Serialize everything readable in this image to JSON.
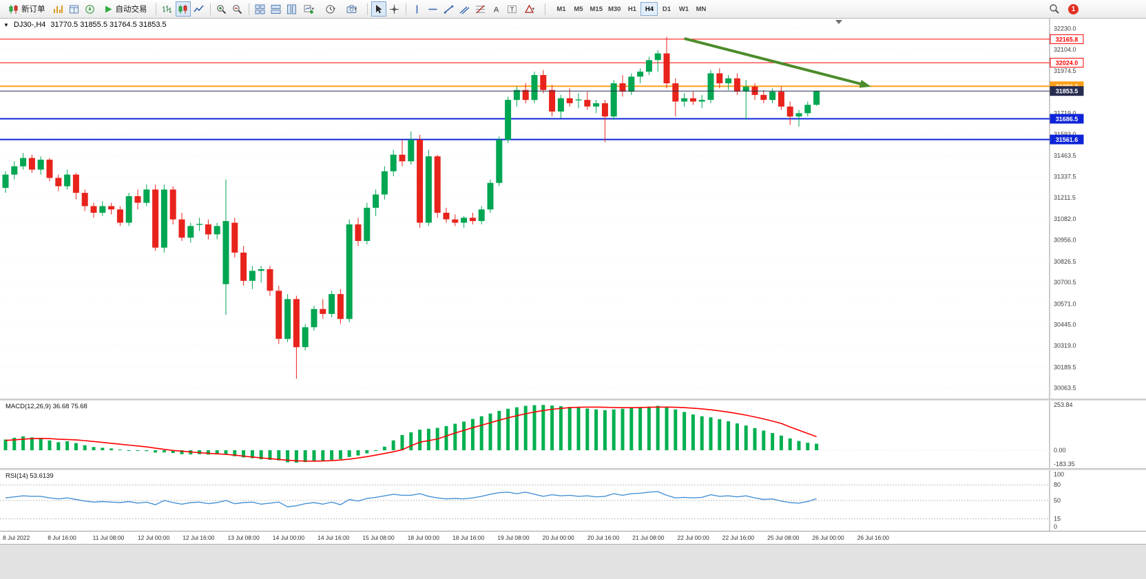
{
  "toolbar": {
    "new_order_label": "新订单",
    "auto_trading_label": "自动交易",
    "timeframes": [
      "M1",
      "M5",
      "M15",
      "M30",
      "H1",
      "H4",
      "D1",
      "W1",
      "MN"
    ],
    "active_timeframe": "H4",
    "notification_count": "1"
  },
  "chart": {
    "symbol": "DJ30-,H4",
    "ohlc": "31770.5 31855.5 31764.5 31853.5",
    "up_color": "#00a651",
    "down_color": "#e8231c",
    "price_max": 32290,
    "price_min": 30000,
    "price_axis": [
      32230.0,
      32104.0,
      31974.5,
      31719.0,
      31593.0,
      31463.5,
      31337.5,
      31211.5,
      31082.0,
      30956.0,
      30826.5,
      30700.5,
      30571.0,
      30445.0,
      30319.0,
      30189.5,
      30063.5
    ],
    "hlines": [
      {
        "value": 32165.8,
        "label": "32165.8",
        "color": "#ff0000",
        "width": 1,
        "badge": "outline"
      },
      {
        "value": 32024.0,
        "label": "32024.0",
        "color": "#ff0000",
        "width": 1,
        "badge": "outline"
      },
      {
        "value": 31882.2,
        "label": "31882.2",
        "color": "#ffa018",
        "width": 2,
        "badge": "solid"
      },
      {
        "value": 31853.5,
        "label": "31853.5",
        "color": "#272b4e",
        "width": 1,
        "badge": "solid",
        "front": true
      },
      {
        "value": 31686.5,
        "label": "31686.5",
        "color": "#0d24d8",
        "width": 2,
        "badge": "solid"
      },
      {
        "value": 31561.6,
        "label": "31561.6",
        "color": "#0d24d8",
        "width": 2,
        "badge": "solid"
      }
    ],
    "arrow": {
      "i1": 77,
      "p1": 32170,
      "i2": 97.5,
      "p2": 31890,
      "color": "#4c8c2b"
    },
    "time_labels": [
      "8 Jul 2022",
      "8 Jul 16:00",
      "11 Jul 08:00",
      "12 Jul 00:00",
      "12 Jul 16:00",
      "13 Jul 08:00",
      "14 Jul 00:00",
      "14 Jul 16:00",
      "15 Jul 08:00",
      "18 Jul 00:00",
      "18 Jul 16:00",
      "19 Jul 08:00",
      "20 Jul 00:00",
      "20 Jul 16:00",
      "21 Jul 08:00",
      "22 Jul 00:00",
      "22 Jul 16:00",
      "25 Jul 08:00",
      "26 Jul 00:00",
      "26 Jul 16:00"
    ],
    "candles": [
      [
        31270,
        31370,
        31240,
        31350
      ],
      [
        31350,
        31430,
        31320,
        31400
      ],
      [
        31400,
        31480,
        31380,
        31450
      ],
      [
        31450,
        31470,
        31360,
        31380
      ],
      [
        31380,
        31460,
        31350,
        31440
      ],
      [
        31440,
        31450,
        31310,
        31330
      ],
      [
        31330,
        31350,
        31250,
        31280
      ],
      [
        31280,
        31380,
        31260,
        31350
      ],
      [
        31350,
        31360,
        31200,
        31240
      ],
      [
        31240,
        31260,
        31130,
        31160
      ],
      [
        31160,
        31180,
        31090,
        31120
      ],
      [
        31120,
        31190,
        31100,
        31160
      ],
      [
        31160,
        31180,
        31110,
        31140
      ],
      [
        31140,
        31160,
        31040,
        31060
      ],
      [
        31060,
        31240,
        31040,
        31220
      ],
      [
        31220,
        31260,
        31140,
        31180
      ],
      [
        31180,
        31290,
        31160,
        31260
      ],
      [
        31260,
        31290,
        30890,
        30910
      ],
      [
        30910,
        31290,
        30880,
        31260
      ],
      [
        31260,
        31280,
        31050,
        31080
      ],
      [
        31080,
        31120,
        30950,
        30970
      ],
      [
        30970,
        31060,
        30940,
        31040
      ],
      [
        31050,
        31090,
        31010,
        31050
      ],
      [
        31050,
        31080,
        30960,
        30990
      ],
      [
        30990,
        31060,
        30960,
        31040
      ],
      [
        30690,
        31320,
        30505,
        31070
      ],
      [
        31060,
        31090,
        30850,
        30880
      ],
      [
        30880,
        30920,
        30680,
        30710
      ],
      [
        30710,
        30800,
        30660,
        30770
      ],
      [
        30770,
        30800,
        30700,
        30780
      ],
      [
        30780,
        30800,
        30620,
        30650
      ],
      [
        30650,
        30680,
        30330,
        30360
      ],
      [
        30360,
        30630,
        30340,
        30600
      ],
      [
        30600,
        30620,
        30120,
        30310
      ],
      [
        30310,
        30450,
        30290,
        30430
      ],
      [
        30430,
        30560,
        30410,
        30540
      ],
      [
        30540,
        30600,
        30480,
        30510
      ],
      [
        30510,
        30650,
        30490,
        30630
      ],
      [
        30630,
        30660,
        30450,
        30480
      ],
      [
        30480,
        31080,
        30460,
        31050
      ],
      [
        31050,
        31090,
        30920,
        30950
      ],
      [
        30950,
        31180,
        30930,
        31150
      ],
      [
        31150,
        31260,
        31100,
        31230
      ],
      [
        31230,
        31400,
        31200,
        31370
      ],
      [
        31370,
        31500,
        31340,
        31470
      ],
      [
        31470,
        31560,
        31400,
        31430
      ],
      [
        31430,
        31610,
        31410,
        31560
      ],
      [
        31560,
        31590,
        31030,
        31060
      ],
      [
        31060,
        31500,
        31040,
        31460
      ],
      [
        31460,
        31470,
        31090,
        31120
      ],
      [
        31120,
        31150,
        31060,
        31080
      ],
      [
        31080,
        31110,
        31040,
        31060
      ],
      [
        31060,
        31100,
        31030,
        31090
      ],
      [
        31090,
        31120,
        31050,
        31070
      ],
      [
        31070,
        31160,
        31050,
        31140
      ],
      [
        31140,
        31320,
        31120,
        31300
      ],
      [
        31300,
        31580,
        31280,
        31560
      ],
      [
        31560,
        31820,
        31540,
        31800
      ],
      [
        31800,
        31880,
        31760,
        31860
      ],
      [
        31860,
        31900,
        31780,
        31800
      ],
      [
        31800,
        31970,
        31780,
        31950
      ],
      [
        31950,
        31980,
        31840,
        31860
      ],
      [
        31860,
        31890,
        31700,
        31730
      ],
      [
        31730,
        31830,
        31690,
        31810
      ],
      [
        31810,
        31870,
        31760,
        31780
      ],
      [
        31800,
        31840,
        31750,
        31800
      ],
      [
        31800,
        31850,
        31740,
        31760
      ],
      [
        31760,
        31800,
        31720,
        31780
      ],
      [
        31780,
        31800,
        31545,
        31700
      ],
      [
        31700,
        31920,
        31680,
        31900
      ],
      [
        31900,
        31950,
        31820,
        31850
      ],
      [
        31850,
        31960,
        31830,
        31940
      ],
      [
        31940,
        31990,
        31900,
        31970
      ],
      [
        31970,
        32060,
        31950,
        32040
      ],
      [
        32040,
        32100,
        31970,
        32080
      ],
      [
        32080,
        32180,
        31870,
        31900
      ],
      [
        31900,
        31930,
        31700,
        31790
      ],
      [
        31790,
        31840,
        31760,
        31810
      ],
      [
        31810,
        31850,
        31770,
        31790
      ],
      [
        31790,
        31830,
        31750,
        31800
      ],
      [
        31800,
        31980,
        31780,
        31960
      ],
      [
        31960,
        31990,
        31870,
        31900
      ],
      [
        31900,
        31950,
        31860,
        31930
      ],
      [
        31930,
        31960,
        31830,
        31850
      ],
      [
        31850,
        31920,
        31680,
        31880
      ],
      [
        31880,
        31900,
        31800,
        31830
      ],
      [
        31830,
        31860,
        31780,
        31800
      ],
      [
        31800,
        31870,
        31780,
        31850
      ],
      [
        31850,
        31880,
        31740,
        31760
      ],
      [
        31760,
        31790,
        31650,
        31700
      ],
      [
        31700,
        31740,
        31640,
        31720
      ],
      [
        31720,
        31790,
        31700,
        31770
      ],
      [
        31770.5,
        31855.5,
        31764.5,
        31853.5
      ]
    ]
  },
  "macd": {
    "label": "MACD(12,26,9) 36.68 75.68",
    "axis": [
      "253.84",
      "0.00",
      "-183.35"
    ],
    "axis_values": [
      253.84,
      0,
      -183.35
    ],
    "scale_max": 253.84,
    "scale_min": -183.35,
    "hist_color": "#00b050",
    "signal_color": "#ff0000",
    "hist": [
      60,
      70,
      78,
      72,
      66,
      55,
      45,
      50,
      40,
      28,
      18,
      14,
      10,
      4,
      -2,
      -8,
      -12,
      -30,
      -28,
      -38,
      -52,
      -55,
      -52,
      -58,
      -55,
      -60,
      -80,
      -95,
      -105,
      -120,
      -128,
      -135,
      -160,
      -165,
      -158,
      -148,
      -140,
      -128,
      -118,
      -90,
      -70,
      -40,
      -10,
      20,
      55,
      85,
      100,
      115,
      120,
      125,
      135,
      148,
      160,
      175,
      190,
      205,
      220,
      232,
      240,
      248,
      252,
      253,
      250,
      246,
      242,
      238,
      233,
      228,
      224,
      228,
      232,
      236,
      240,
      244,
      248,
      240,
      228,
      214,
      200,
      190,
      184,
      174,
      162,
      150,
      138,
      124,
      110,
      96,
      82,
      66,
      52,
      42,
      36.68
    ],
    "signal": [
      55,
      58,
      62,
      65,
      66,
      65,
      62,
      60,
      58,
      54,
      49,
      44,
      39,
      34,
      29,
      24,
      19,
      12,
      5,
      -3,
      -12,
      -22,
      -32,
      -40,
      -48,
      -55,
      -65,
      -78,
      -90,
      -102,
      -112,
      -122,
      -132,
      -140,
      -144,
      -145,
      -143,
      -138,
      -130,
      -118,
      -103,
      -85,
      -65,
      -43,
      -20,
      3,
      25,
      45,
      54,
      63,
      80,
      96,
      111,
      126,
      140,
      154,
      168,
      181,
      193,
      204,
      214,
      222,
      229,
      234,
      238,
      240,
      241,
      241,
      240,
      239,
      238,
      238,
      239,
      240,
      241,
      241,
      240,
      238,
      235,
      231,
      226,
      220,
      213,
      205,
      196,
      186,
      175,
      163,
      150,
      130,
      112,
      94,
      75.68
    ]
  },
  "rsi": {
    "label": "RSI(14) 53.6139",
    "axis": [
      "100",
      "80",
      "50",
      "15",
      "0"
    ],
    "axis_values": [
      100,
      80,
      50,
      15,
      0
    ],
    "levels": [
      80,
      50,
      15
    ],
    "line_color": "#4791d6",
    "values": [
      55,
      57,
      59,
      58,
      58,
      55,
      53,
      55,
      52,
      49,
      47,
      48,
      47,
      46,
      48,
      45,
      47,
      42,
      50,
      46,
      43,
      46,
      47,
      44,
      46,
      50,
      44,
      46,
      47,
      43,
      45,
      47,
      38,
      40,
      44,
      46,
      43,
      47,
      42,
      52,
      49,
      54,
      56,
      59,
      62,
      60,
      60,
      63,
      58,
      55,
      53,
      54,
      53,
      55,
      58,
      62,
      65,
      66,
      63,
      66,
      62,
      58,
      61,
      59,
      60,
      58,
      59,
      57,
      58,
      63,
      60,
      63,
      64,
      66,
      67,
      60,
      55,
      56,
      55,
      56,
      61,
      58,
      59,
      57,
      59,
      55,
      52,
      53,
      49,
      46,
      45,
      48,
      53.61
    ]
  }
}
